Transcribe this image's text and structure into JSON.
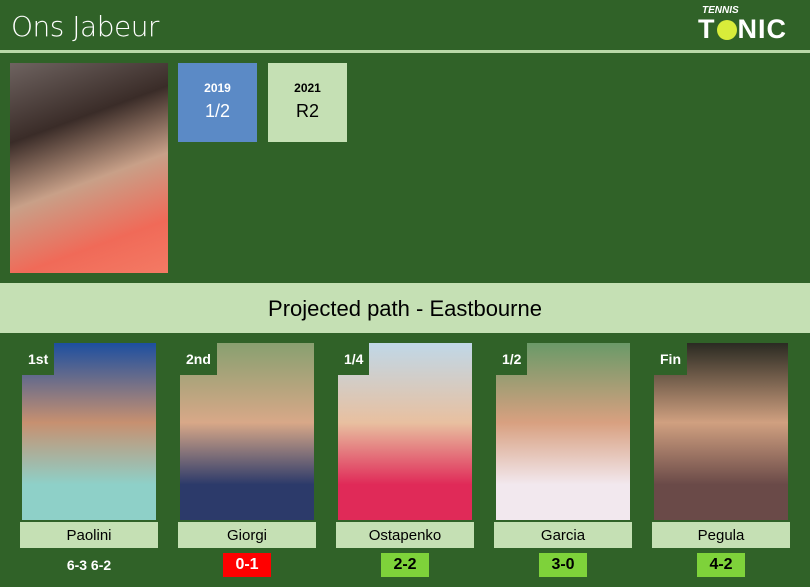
{
  "header": {
    "title": "Ons Jabeur",
    "logo_top": "TENNIS",
    "logo_main_left": "T",
    "logo_main_right": "NIC"
  },
  "history": [
    {
      "year": "2019",
      "result": "1/2",
      "color": "#5b8ac6"
    },
    {
      "year": "2021",
      "result": "R2",
      "color": "#c5e0b4"
    }
  ],
  "banner": "Projected path - Eastbourne",
  "path": [
    {
      "round": "1st",
      "name": "Paolini",
      "score": "6-3 6-2",
      "score_color": null,
      "photo": [
        "#1d4fa0",
        "#c79070",
        "#8ed0c8"
      ]
    },
    {
      "round": "2nd",
      "name": "Giorgi",
      "score": "0-1",
      "score_color": "#ff0000",
      "photo": [
        "#88a070",
        "#d8a888",
        "#2c3a6a"
      ]
    },
    {
      "round": "1/4",
      "name": "Ostapenko",
      "score": "2-2",
      "score_color": "#7ed23a",
      "photo": [
        "#c0d8e8",
        "#e8c0a0",
        "#e02a58"
      ]
    },
    {
      "round": "1/2",
      "name": "Garcia",
      "score": "3-0",
      "score_color": "#7ed23a",
      "photo": [
        "#6a9a68",
        "#d8a080",
        "#f2e8ee"
      ]
    },
    {
      "round": "Fin",
      "name": "Pegula",
      "score": "4-2",
      "score_color": "#7ed23a",
      "photo": [
        "#2a2a22",
        "#d0a080",
        "#6a4a48"
      ]
    }
  ]
}
